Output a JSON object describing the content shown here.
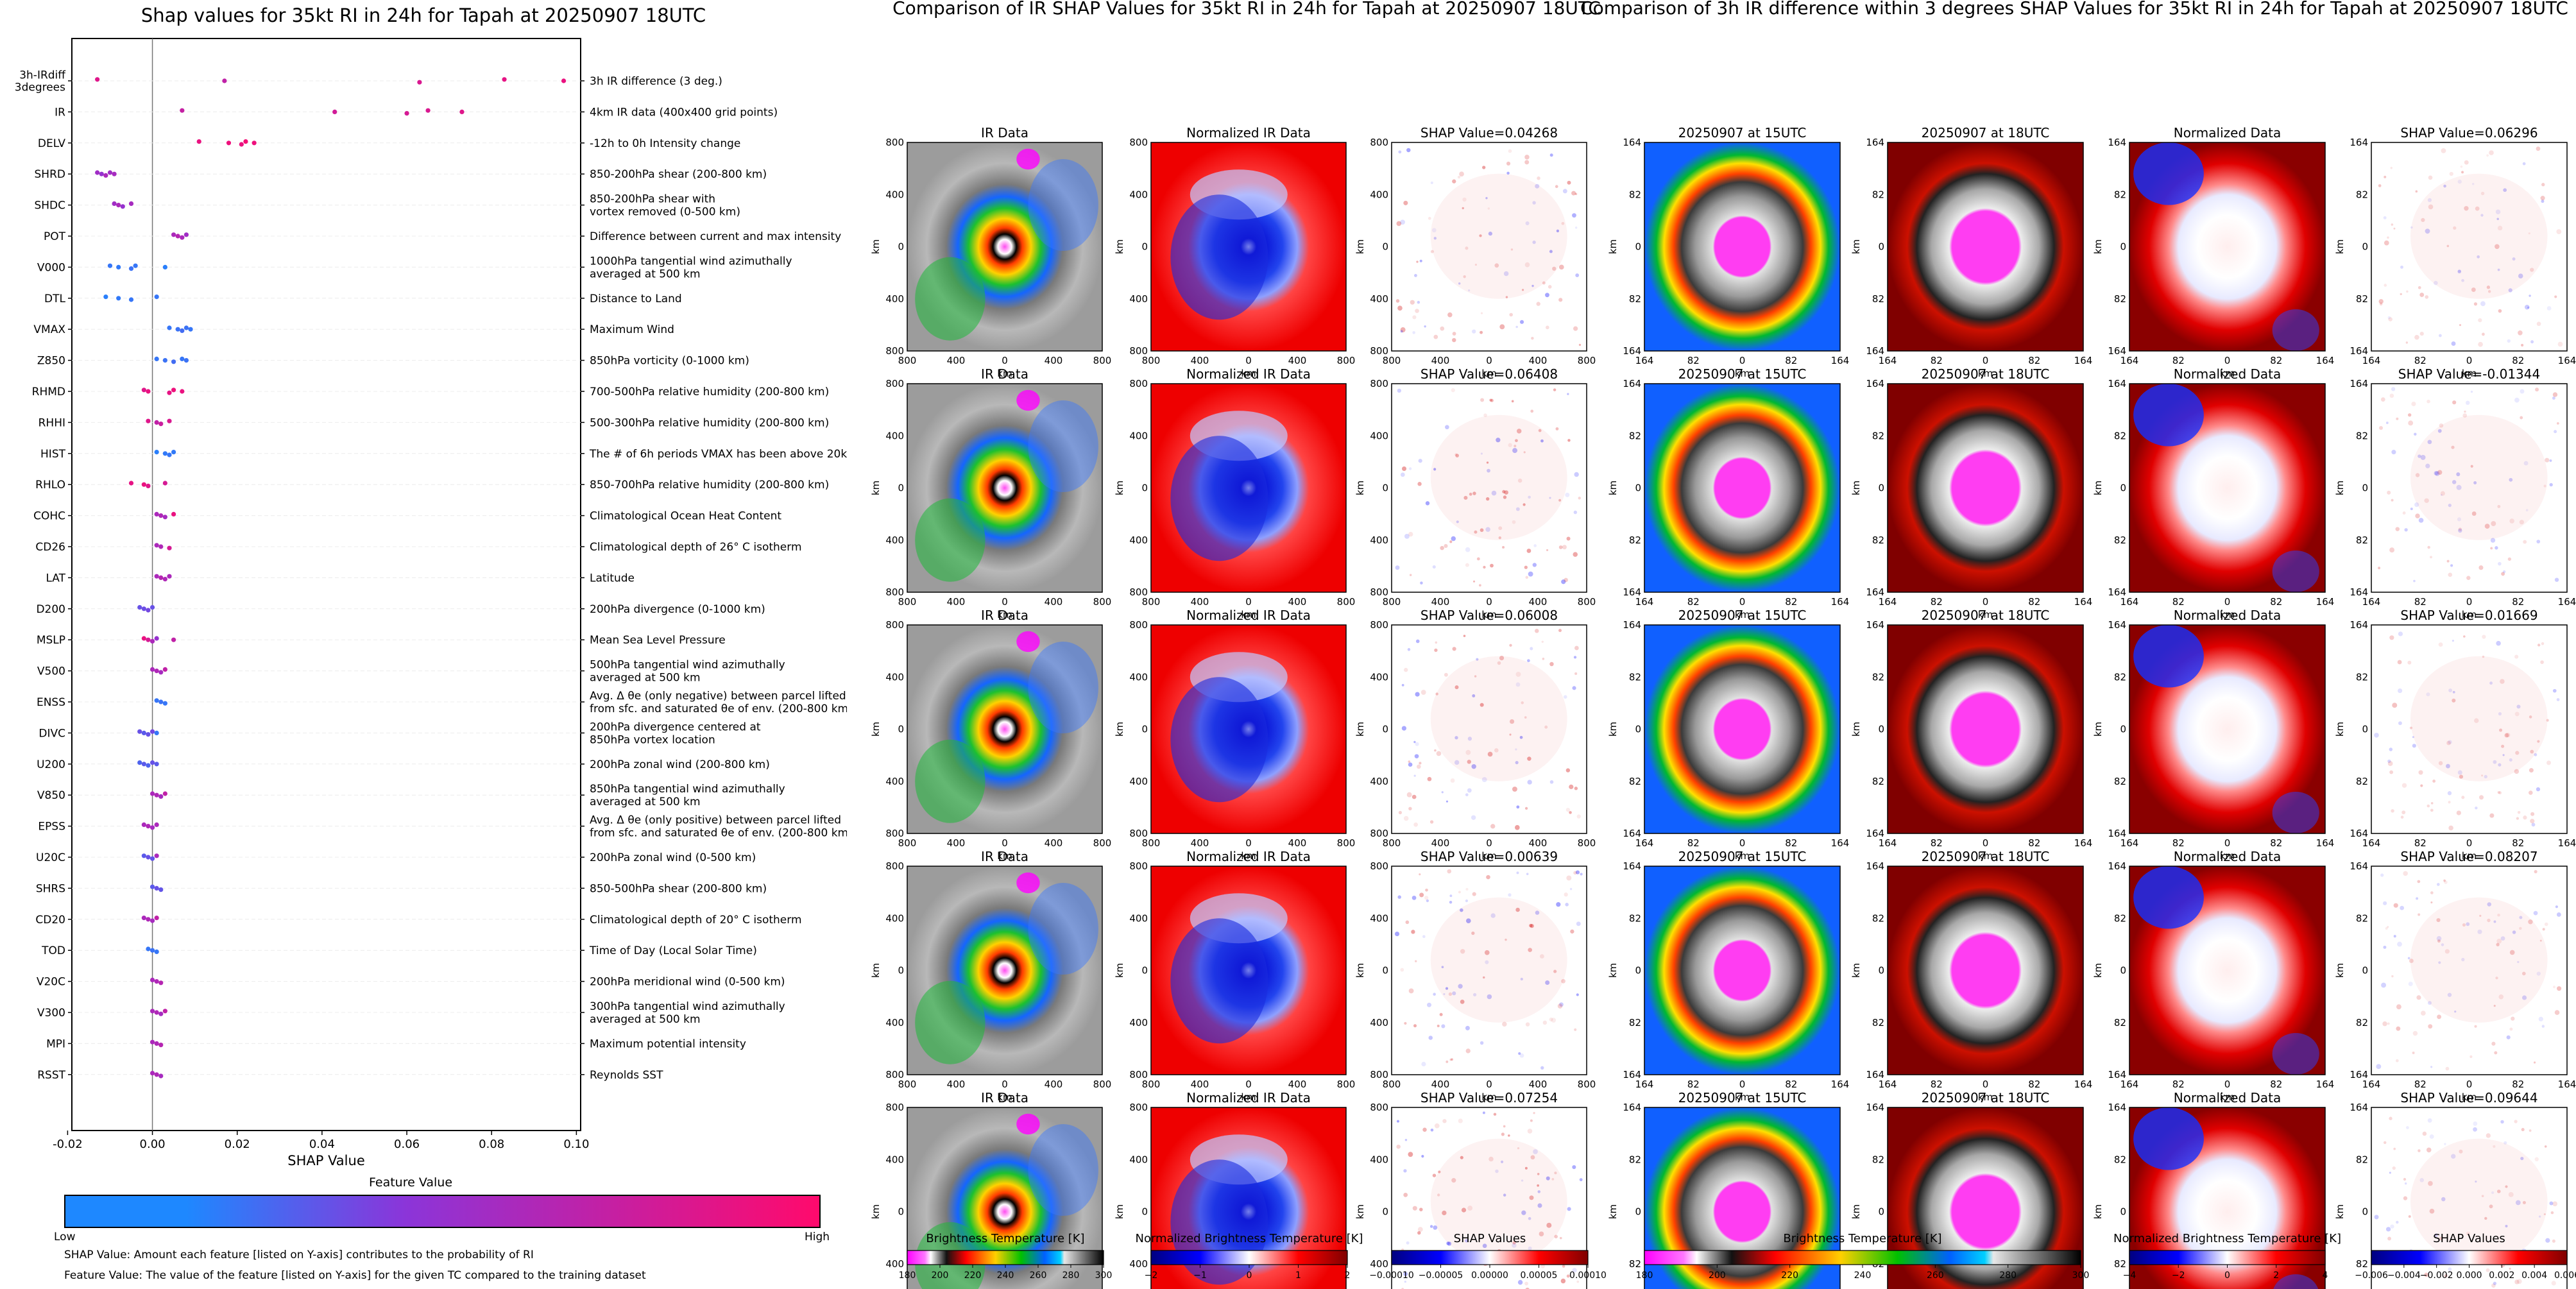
{
  "swarm": {
    "title": "Shap values for 35kt RI in 24h for Tapah at 20250907 18UTC",
    "xlabel": "SHAP Value",
    "x_ticks": [
      "-0.02",
      "0.00",
      "0.02",
      "0.04",
      "0.06",
      "0.08",
      "0.10"
    ],
    "colorbar_title": "Feature Value",
    "colorbar_low": "Low",
    "colorbar_high": "High",
    "note1": "SHAP Value: Amount each feature [listed on Y-axis] contributes to the probability of RI",
    "note2": "Feature Value: The value of the feature [listed on Y-axis] for the given TC compared to the training dataset"
  },
  "chart_data": [
    {
      "type": "scatter",
      "title": "Shap values for 35kt RI in 24h for Tapah at 20250907 18UTC",
      "xlabel": "SHAP Value",
      "ylabel": "",
      "xlim": [
        -0.019,
        0.101
      ],
      "grid": false,
      "colorbar": {
        "label": "Feature Value",
        "low": "Low",
        "high": "High",
        "low_color": "#1e88ff",
        "mid_color": "#8b35d9",
        "high_color": "#ff0a6c"
      },
      "features": [
        {
          "code": "3h-IRdiff\n3degrees",
          "desc": "3h IR difference (3 deg.)",
          "points": [
            [
              -0.013,
              0.85
            ],
            [
              0.017,
              0.7
            ],
            [
              0.063,
              0.82
            ],
            [
              0.083,
              0.88
            ],
            [
              0.097,
              0.9
            ]
          ]
        },
        {
          "code": "IR",
          "desc": "4km IR data (400x400 grid points)",
          "points": [
            [
              0.007,
              0.72
            ],
            [
              0.043,
              0.78
            ],
            [
              0.06,
              0.8
            ],
            [
              0.065,
              0.82
            ],
            [
              0.073,
              0.85
            ]
          ]
        },
        {
          "code": "DELV",
          "desc": "-12h to 0h Intensity change",
          "points": [
            [
              0.011,
              0.9
            ],
            [
              0.018,
              0.92
            ],
            [
              0.021,
              0.9
            ],
            [
              0.022,
              0.95
            ],
            [
              0.024,
              0.92
            ]
          ]
        },
        {
          "code": "SHRD",
          "desc": "850-200hPa shear (200-800 km)",
          "points": [
            [
              -0.013,
              0.55
            ],
            [
              -0.012,
              0.5
            ],
            [
              -0.011,
              0.6
            ],
            [
              -0.01,
              0.55
            ],
            [
              -0.009,
              0.58
            ]
          ]
        },
        {
          "code": "SHDC",
          "desc": "850-200hPa shear with\nvortex removed (0-500 km)",
          "points": [
            [
              -0.009,
              0.55
            ],
            [
              -0.008,
              0.6
            ],
            [
              -0.007,
              0.5
            ],
            [
              -0.005,
              0.58
            ]
          ]
        },
        {
          "code": "POT",
          "desc": "Difference between current and max intensity",
          "points": [
            [
              0.005,
              0.6
            ],
            [
              0.006,
              0.65
            ],
            [
              0.007,
              0.6
            ],
            [
              0.008,
              0.55
            ]
          ]
        },
        {
          "code": "V000",
          "desc": "1000hPa tangential wind azimuthally\naveraged at 500 km",
          "points": [
            [
              -0.01,
              0.1
            ],
            [
              -0.008,
              0.08
            ],
            [
              -0.005,
              0.12
            ],
            [
              -0.004,
              0.1
            ],
            [
              0.003,
              0.05
            ]
          ]
        },
        {
          "code": "DTL",
          "desc": "Distance to Land",
          "points": [
            [
              -0.011,
              0.05
            ],
            [
              -0.008,
              0.08
            ],
            [
              -0.005,
              0.1
            ],
            [
              0.001,
              0.1
            ]
          ]
        },
        {
          "code": "VMAX",
          "desc": "Maximum Wind",
          "points": [
            [
              0.004,
              0.1
            ],
            [
              0.006,
              0.12
            ],
            [
              0.007,
              0.15
            ],
            [
              0.008,
              0.12
            ],
            [
              0.009,
              0.1
            ]
          ]
        },
        {
          "code": "Z850",
          "desc": "850hPa vorticity (0-1000 km)",
          "points": [
            [
              0.001,
              0.1
            ],
            [
              0.003,
              0.12
            ],
            [
              0.005,
              0.15
            ],
            [
              0.007,
              0.1
            ],
            [
              0.008,
              0.12
            ]
          ]
        },
        {
          "code": "RHMD",
          "desc": "700-500hPa relative humidity (200-800 km)",
          "points": [
            [
              -0.002,
              0.85
            ],
            [
              -0.001,
              0.9
            ],
            [
              0.004,
              0.88
            ],
            [
              0.005,
              0.92
            ],
            [
              0.007,
              0.9
            ]
          ]
        },
        {
          "code": "RHHI",
          "desc": "500-300hPa relative humidity (200-800 km)",
          "points": [
            [
              -0.001,
              0.85
            ],
            [
              0.001,
              0.7
            ],
            [
              0.002,
              0.75
            ],
            [
              0.004,
              0.82
            ]
          ]
        },
        {
          "code": "HIST",
          "desc": "The # of 6h periods VMAX has been above 20kt",
          "points": [
            [
              0.001,
              0.05
            ],
            [
              0.003,
              0.08
            ],
            [
              0.004,
              0.1
            ],
            [
              0.005,
              0.08
            ]
          ]
        },
        {
          "code": "RHLO",
          "desc": "850-700hPa relative humidity (200-800 km)",
          "points": [
            [
              -0.005,
              0.88
            ],
            [
              -0.002,
              0.9
            ],
            [
              -0.001,
              0.85
            ],
            [
              0.003,
              0.8
            ]
          ]
        },
        {
          "code": "COHC",
          "desc": "Climatological Ocean Heat Content",
          "points": [
            [
              0.001,
              0.6
            ],
            [
              0.002,
              0.62
            ],
            [
              0.003,
              0.58
            ],
            [
              0.005,
              0.9
            ]
          ]
        },
        {
          "code": "CD26",
          "desc": "Climatological depth of 26° C isotherm",
          "points": [
            [
              0.001,
              0.6
            ],
            [
              0.002,
              0.62
            ],
            [
              0.004,
              0.8
            ]
          ]
        },
        {
          "code": "LAT",
          "desc": "Latitude",
          "points": [
            [
              0.001,
              0.6
            ],
            [
              0.002,
              0.65
            ],
            [
              0.003,
              0.62
            ],
            [
              0.004,
              0.6
            ]
          ]
        },
        {
          "code": "D200",
          "desc": "200hPa divergence (0-1000 km)",
          "points": [
            [
              -0.003,
              0.3
            ],
            [
              -0.002,
              0.32
            ],
            [
              -0.001,
              0.35
            ],
            [
              0.0,
              0.3
            ]
          ]
        },
        {
          "code": "MSLP",
          "desc": "Mean Sea Level Pressure",
          "points": [
            [
              -0.002,
              0.9
            ],
            [
              -0.001,
              0.8
            ],
            [
              0.0,
              0.6
            ],
            [
              0.001,
              0.5
            ],
            [
              0.005,
              0.7
            ]
          ]
        },
        {
          "code": "V500",
          "desc": "500hPa tangential wind azimuthally\naveraged at 500 km",
          "points": [
            [
              0.0,
              0.6
            ],
            [
              0.001,
              0.62
            ],
            [
              0.002,
              0.58
            ],
            [
              0.003,
              0.7
            ]
          ]
        },
        {
          "code": "ENSS",
          "desc": "Avg. Δ θe (only negative) between parcel lifted\nfrom sfc. and saturated θe of env. (200-800 km)",
          "points": [
            [
              0.001,
              0.1
            ],
            [
              0.002,
              0.12
            ],
            [
              0.003,
              0.1
            ]
          ]
        },
        {
          "code": "DIVC",
          "desc": "200hPa divergence centered at\n850hPa vortex location",
          "points": [
            [
              -0.003,
              0.3
            ],
            [
              -0.002,
              0.25
            ],
            [
              -0.001,
              0.3
            ],
            [
              0.0,
              0.35
            ],
            [
              0.001,
              0.1
            ]
          ]
        },
        {
          "code": "U200",
          "desc": "200hPa zonal wind (200-800 km)",
          "points": [
            [
              -0.003,
              0.2
            ],
            [
              -0.002,
              0.25
            ],
            [
              -0.001,
              0.2
            ],
            [
              0.0,
              0.3
            ],
            [
              0.001,
              0.25
            ]
          ]
        },
        {
          "code": "V850",
          "desc": "850hPa tangential wind azimuthally\naveraged at 500 km",
          "points": [
            [
              0.0,
              0.6
            ],
            [
              0.001,
              0.62
            ],
            [
              0.002,
              0.58
            ],
            [
              0.003,
              0.7
            ]
          ]
        },
        {
          "code": "EPSS",
          "desc": "Avg. Δ θe (only positive) between parcel lifted\nfrom sfc. and saturated θe of env. (200-800 km)",
          "points": [
            [
              -0.002,
              0.6
            ],
            [
              -0.001,
              0.62
            ],
            [
              0.0,
              0.58
            ],
            [
              0.001,
              0.6
            ]
          ]
        },
        {
          "code": "U20C",
          "desc": "200hPa zonal wind (0-500 km)",
          "points": [
            [
              -0.002,
              0.25
            ],
            [
              -0.001,
              0.3
            ],
            [
              0.0,
              0.28
            ],
            [
              0.001,
              0.6
            ]
          ]
        },
        {
          "code": "SHRS",
          "desc": "850-500hPa shear (200-800 km)",
          "points": [
            [
              0.0,
              0.25
            ],
            [
              0.001,
              0.3
            ],
            [
              0.002,
              0.28
            ]
          ]
        },
        {
          "code": "CD20",
          "desc": "Climatological depth of 20° C isotherm",
          "points": [
            [
              -0.002,
              0.6
            ],
            [
              -0.001,
              0.62
            ],
            [
              0.0,
              0.58
            ],
            [
              0.001,
              0.7
            ]
          ]
        },
        {
          "code": "TOD",
          "desc": "Time of Day (Local Solar Time)",
          "points": [
            [
              -0.001,
              0.1
            ],
            [
              0.0,
              0.12
            ],
            [
              0.001,
              0.1
            ]
          ]
        },
        {
          "code": "V20C",
          "desc": "200hPa meridional wind (0-500 km)",
          "points": [
            [
              0.0,
              0.6
            ],
            [
              0.001,
              0.62
            ],
            [
              0.002,
              0.65
            ]
          ]
        },
        {
          "code": "V300",
          "desc": "300hPa tangential wind azimuthally\naveraged at 500 km",
          "points": [
            [
              0.0,
              0.6
            ],
            [
              0.001,
              0.62
            ],
            [
              0.002,
              0.58
            ],
            [
              0.003,
              0.7
            ]
          ]
        },
        {
          "code": "MPI",
          "desc": "Maximum potential intensity",
          "points": [
            [
              0.0,
              0.6
            ],
            [
              0.001,
              0.62
            ],
            [
              0.002,
              0.65
            ]
          ]
        },
        {
          "code": "RSST",
          "desc": "Reynolds SST",
          "points": [
            [
              0.0,
              0.6
            ],
            [
              0.001,
              0.62
            ],
            [
              0.002,
              0.58
            ]
          ]
        }
      ]
    },
    {
      "type": "heatmap",
      "title": "Comparison of IR SHAP Values for 35kt RI in 24h for Tapah at 20250907 18UTC",
      "columns": [
        "IR Data",
        "Normalized IR Data",
        "SHAP"
      ],
      "shap_values": [
        "0.04268",
        "0.06408",
        "0.06008",
        "0.00639",
        "0.07254"
      ],
      "xlabel": "km",
      "ylabel": "km",
      "x_ticks": [
        "800",
        "400",
        "0",
        "400",
        "800"
      ],
      "y_ticks": [
        "800",
        "400",
        "0",
        "400",
        "800"
      ],
      "colorbars": [
        {
          "label": "Brightness Temperature [K]",
          "ticks": [
            "180",
            "200",
            "220",
            "240",
            "260",
            "280",
            "300"
          ]
        },
        {
          "label": "Normalized Brightness Temperature [K]",
          "ticks": [
            "−2",
            "−1",
            "0",
            "1",
            "2"
          ]
        },
        {
          "label": "SHAP Values",
          "ticks": [
            "−0.00010",
            "−0.00005",
            "0.00000",
            "0.00005",
            "0.00010"
          ]
        }
      ]
    },
    {
      "type": "heatmap",
      "title": "Comparison of 3h IR difference within 3 degrees SHAP Values for 35kt RI in 24h for Tapah at 20250907 18UTC",
      "columns": [
        "20250907 at 15UTC",
        "20250907 at 18UTC",
        "Normalized Data",
        "SHAP"
      ],
      "shap_values": [
        "0.06296",
        "-0.01344",
        "0.01669",
        "0.08207",
        "0.09644"
      ],
      "xlabel": "km",
      "ylabel": "km",
      "x_ticks": [
        "164",
        "82",
        "0",
        "82",
        "164"
      ],
      "y_ticks": [
        "164",
        "82",
        "0",
        "82",
        "164"
      ],
      "colorbars": [
        {
          "label": "Brightness Temperature [K]",
          "ticks": [
            "180",
            "200",
            "220",
            "240",
            "260",
            "280",
            "300"
          ]
        },
        {
          "label": "Normalized Brightness Temperature [K]",
          "ticks": [
            "−4",
            "−2",
            "0",
            "2",
            "4"
          ]
        },
        {
          "label": "SHAP Values",
          "ticks": [
            "−0.006",
            "−0.004",
            "−0.002",
            "0.000",
            "0.002",
            "0.004",
            "0.006"
          ]
        }
      ]
    }
  ],
  "ir_section": {
    "title": "Comparison of IR SHAP Values for 35kt RI in 24h for Tapah at 20250907 18UTC",
    "col1": "IR Data",
    "col2": "Normalized IR Data",
    "shap_prefix": "SHAP Value="
  },
  "diff_section": {
    "title": "Comparison of 3h IR difference within 3 degrees SHAP Values for 35kt RI in 24h for Tapah at 20250907 18UTC",
    "col1": "20250907 at 15UTC",
    "col2": "20250907 at 18UTC",
    "col3": "Normalized Data",
    "shap_prefix": "SHAP Value="
  },
  "colors": {
    "low": "#1e88ff",
    "mid": "#8b35d9",
    "high": "#ff0a6c",
    "shap_neg": "#2b2bff",
    "shap_pos": "#d62020"
  }
}
